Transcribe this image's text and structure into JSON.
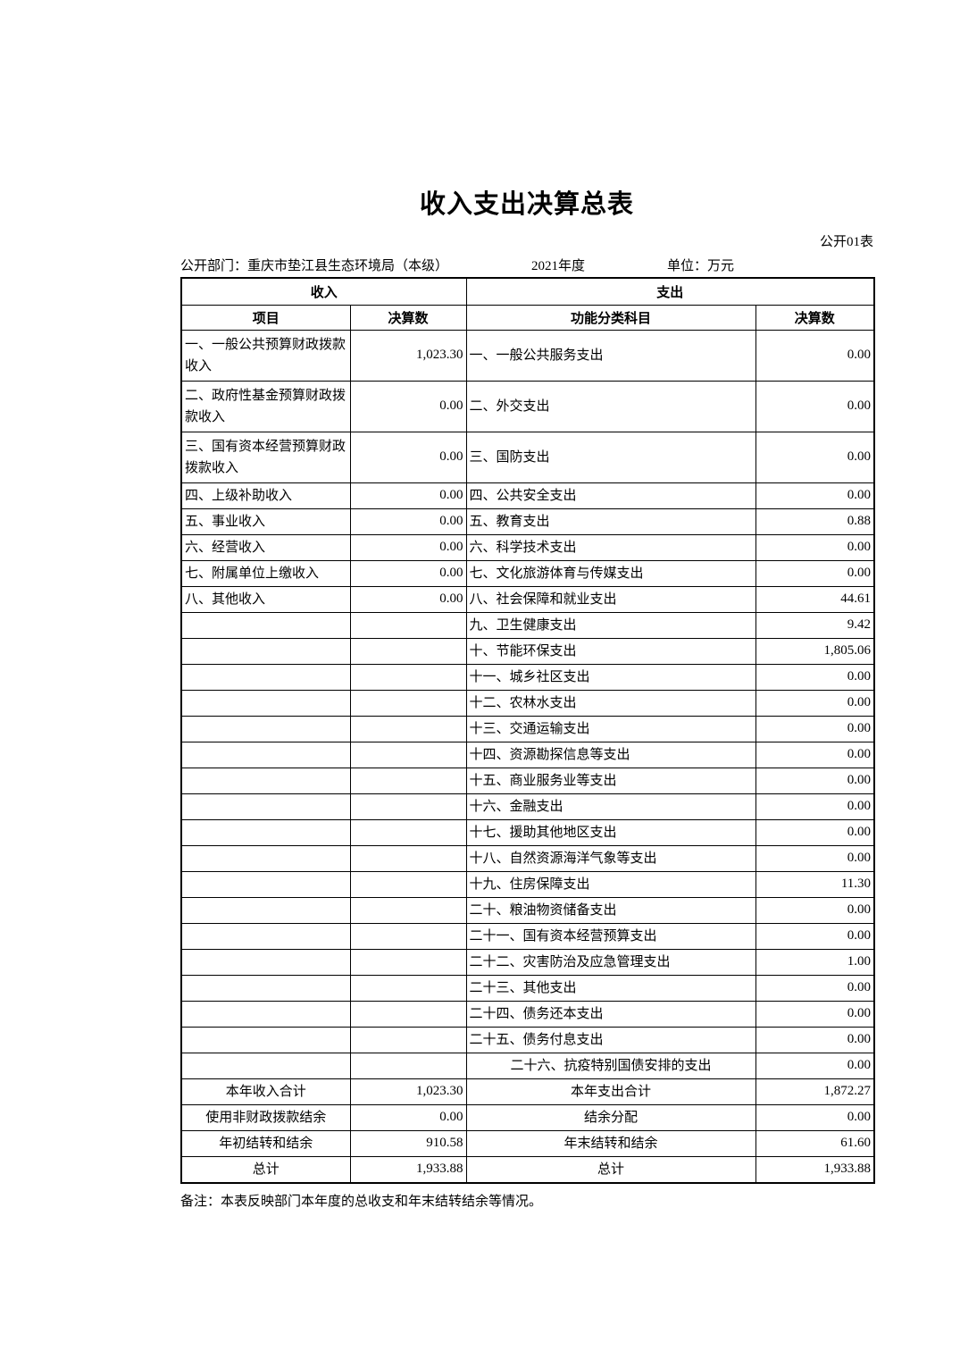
{
  "page": {
    "title": "收入支出决算总表",
    "table_code": "公开01表",
    "meta": {
      "department": "公开部门：重庆市垫江县生态环境局（本级）",
      "year": "2021年度",
      "unit": "单位：万元"
    },
    "note": "备注：本表反映部门本年度的总收支和年末结转结余等情况。"
  },
  "table": {
    "group_headers": {
      "income": "收入",
      "expense": "支出"
    },
    "columns": [
      "项目",
      "决算数",
      "功能分类科目",
      "决算数"
    ],
    "rows": [
      {
        "income_item": "一、一般公共预算财政拨款收入",
        "income_amount": "1,023.30",
        "expense_item": "一、一般公共服务支出",
        "expense_amount": "0.00"
      },
      {
        "income_item": "二、政府性基金预算财政拨款收入",
        "income_amount": "0.00",
        "expense_item": "二、外交支出",
        "expense_amount": "0.00"
      },
      {
        "income_item": "三、国有资本经营预算财政拨款收入",
        "income_amount": "0.00",
        "expense_item": "三、国防支出",
        "expense_amount": "0.00"
      },
      {
        "income_item": "四、上级补助收入",
        "income_amount": "0.00",
        "expense_item": "四、公共安全支出",
        "expense_amount": "0.00"
      },
      {
        "income_item": "五、事业收入",
        "income_amount": "0.00",
        "expense_item": "五、教育支出",
        "expense_amount": "0.88"
      },
      {
        "income_item": "六、经营收入",
        "income_amount": "0.00",
        "expense_item": "六、科学技术支出",
        "expense_amount": "0.00"
      },
      {
        "income_item": "七、附属单位上缴收入",
        "income_amount": "0.00",
        "expense_item": "七、文化旅游体育与传媒支出",
        "expense_amount": "0.00"
      },
      {
        "income_item": "八、其他收入",
        "income_amount": "0.00",
        "expense_item": "八、社会保障和就业支出",
        "expense_amount": "44.61"
      },
      {
        "income_item": "",
        "income_amount": "",
        "expense_item": "九、卫生健康支出",
        "expense_amount": "9.42"
      },
      {
        "income_item": "",
        "income_amount": "",
        "expense_item": "十、节能环保支出",
        "expense_amount": "1,805.06"
      },
      {
        "income_item": "",
        "income_amount": "",
        "expense_item": "十一、城乡社区支出",
        "expense_amount": "0.00"
      },
      {
        "income_item": "",
        "income_amount": "",
        "expense_item": "十二、农林水支出",
        "expense_amount": "0.00"
      },
      {
        "income_item": "",
        "income_amount": "",
        "expense_item": "十三、交通运输支出",
        "expense_amount": "0.00"
      },
      {
        "income_item": "",
        "income_amount": "",
        "expense_item": "十四、资源勘探信息等支出",
        "expense_amount": "0.00"
      },
      {
        "income_item": "",
        "income_amount": "",
        "expense_item": "十五、商业服务业等支出",
        "expense_amount": "0.00"
      },
      {
        "income_item": "",
        "income_amount": "",
        "expense_item": "十六、金融支出",
        "expense_amount": "0.00"
      },
      {
        "income_item": "",
        "income_amount": "",
        "expense_item": "十七、援助其他地区支出",
        "expense_amount": "0.00"
      },
      {
        "income_item": "",
        "income_amount": "",
        "expense_item": "十八、自然资源海洋气象等支出",
        "expense_amount": "0.00"
      },
      {
        "income_item": "",
        "income_amount": "",
        "expense_item": "十九、住房保障支出",
        "expense_amount": "11.30"
      },
      {
        "income_item": "",
        "income_amount": "",
        "expense_item": "二十、粮油物资储备支出",
        "expense_amount": "0.00"
      },
      {
        "income_item": "",
        "income_amount": "",
        "expense_item": "二十一、国有资本经营预算支出",
        "expense_amount": "0.00"
      },
      {
        "income_item": "",
        "income_amount": "",
        "expense_item": "二十二、灾害防治及应急管理支出",
        "expense_amount": "1.00"
      },
      {
        "income_item": "",
        "income_amount": "",
        "expense_item": "二十三、其他支出",
        "expense_amount": "0.00"
      },
      {
        "income_item": "",
        "income_amount": "",
        "expense_item": "二十四、债务还本支出",
        "expense_amount": "0.00"
      },
      {
        "income_item": "",
        "income_amount": "",
        "expense_item": "二十五、债务付息支出",
        "expense_amount": "0.00"
      },
      {
        "income_item": "",
        "income_amount": "",
        "expense_item": "二十六、抗疫特别国债安排的支出",
        "expense_amount": "0.00",
        "expense_align": "center"
      }
    ],
    "summary": [
      {
        "income_item": "本年收入合计",
        "income_amount": "1,023.30",
        "expense_item": "本年支出合计",
        "expense_amount": "1,872.27",
        "bold": true
      },
      {
        "income_item": "使用非财政拨款结余",
        "income_amount": "0.00",
        "expense_item": "结余分配",
        "expense_amount": "0.00"
      },
      {
        "income_item": "年初结转和结余",
        "income_amount": "910.58",
        "expense_item": "年末结转和结余",
        "expense_amount": "61.60"
      },
      {
        "income_item": "总计",
        "income_amount": "1,933.88",
        "expense_item": "总计",
        "expense_amount": "1,933.88",
        "bold": true
      }
    ]
  }
}
